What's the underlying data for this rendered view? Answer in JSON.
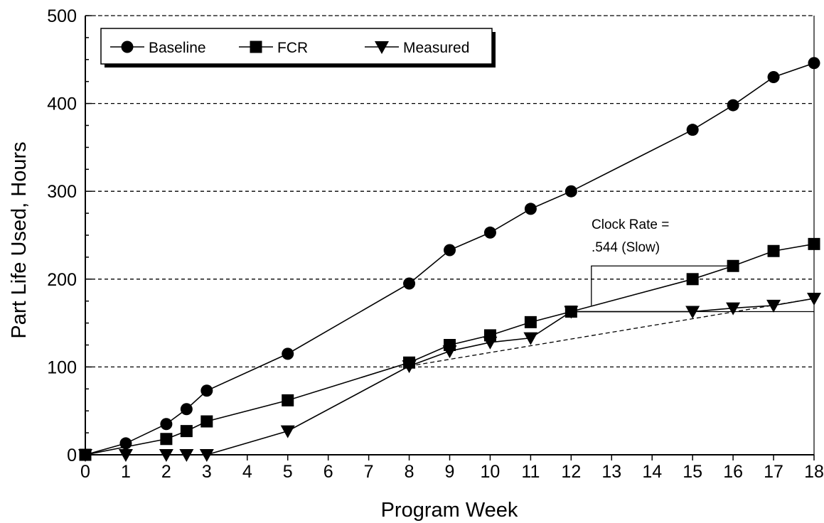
{
  "chart_data": {
    "type": "line",
    "xlabel": "Program Week",
    "ylabel": "Part Life Used, Hours",
    "xlim": [
      0,
      18
    ],
    "ylim": [
      0,
      500
    ],
    "x_ticks": [
      0,
      1,
      2,
      3,
      4,
      5,
      6,
      7,
      8,
      9,
      10,
      11,
      12,
      13,
      14,
      15,
      16,
      17,
      18
    ],
    "y_ticks": [
      0,
      100,
      200,
      300,
      400,
      500
    ],
    "grid": "horizontal dashed",
    "legend_position": "top-left",
    "series": [
      {
        "name": "Baseline",
        "marker": "circle",
        "x": [
          0,
          1,
          2,
          2.5,
          3,
          5,
          8,
          9,
          10,
          11,
          12,
          15,
          16,
          17,
          18
        ],
        "y": [
          0,
          13,
          35,
          52,
          73,
          115,
          195,
          233,
          253,
          280,
          300,
          370,
          398,
          430,
          446
        ]
      },
      {
        "name": "FCR",
        "marker": "square",
        "x": [
          0,
          2,
          2.5,
          3,
          5,
          8,
          9,
          10,
          11,
          12,
          15,
          16,
          17,
          18
        ],
        "y": [
          0,
          18,
          27,
          38,
          62,
          105,
          125,
          136,
          151,
          163,
          200,
          215,
          232,
          240
        ]
      },
      {
        "name": "Measured",
        "marker": "triangle-down",
        "x": [
          0,
          1,
          2,
          2.5,
          3,
          5,
          8,
          9,
          10,
          11,
          12,
          15,
          16,
          17,
          18
        ],
        "y": [
          0,
          0,
          0,
          0,
          0,
          27,
          101,
          118,
          128,
          133,
          163,
          163,
          167,
          170,
          178
        ]
      }
    ],
    "annotations": {
      "clock_rate_line1": "Clock Rate =",
      "clock_rate_line2": ".544 (Slow)"
    }
  }
}
